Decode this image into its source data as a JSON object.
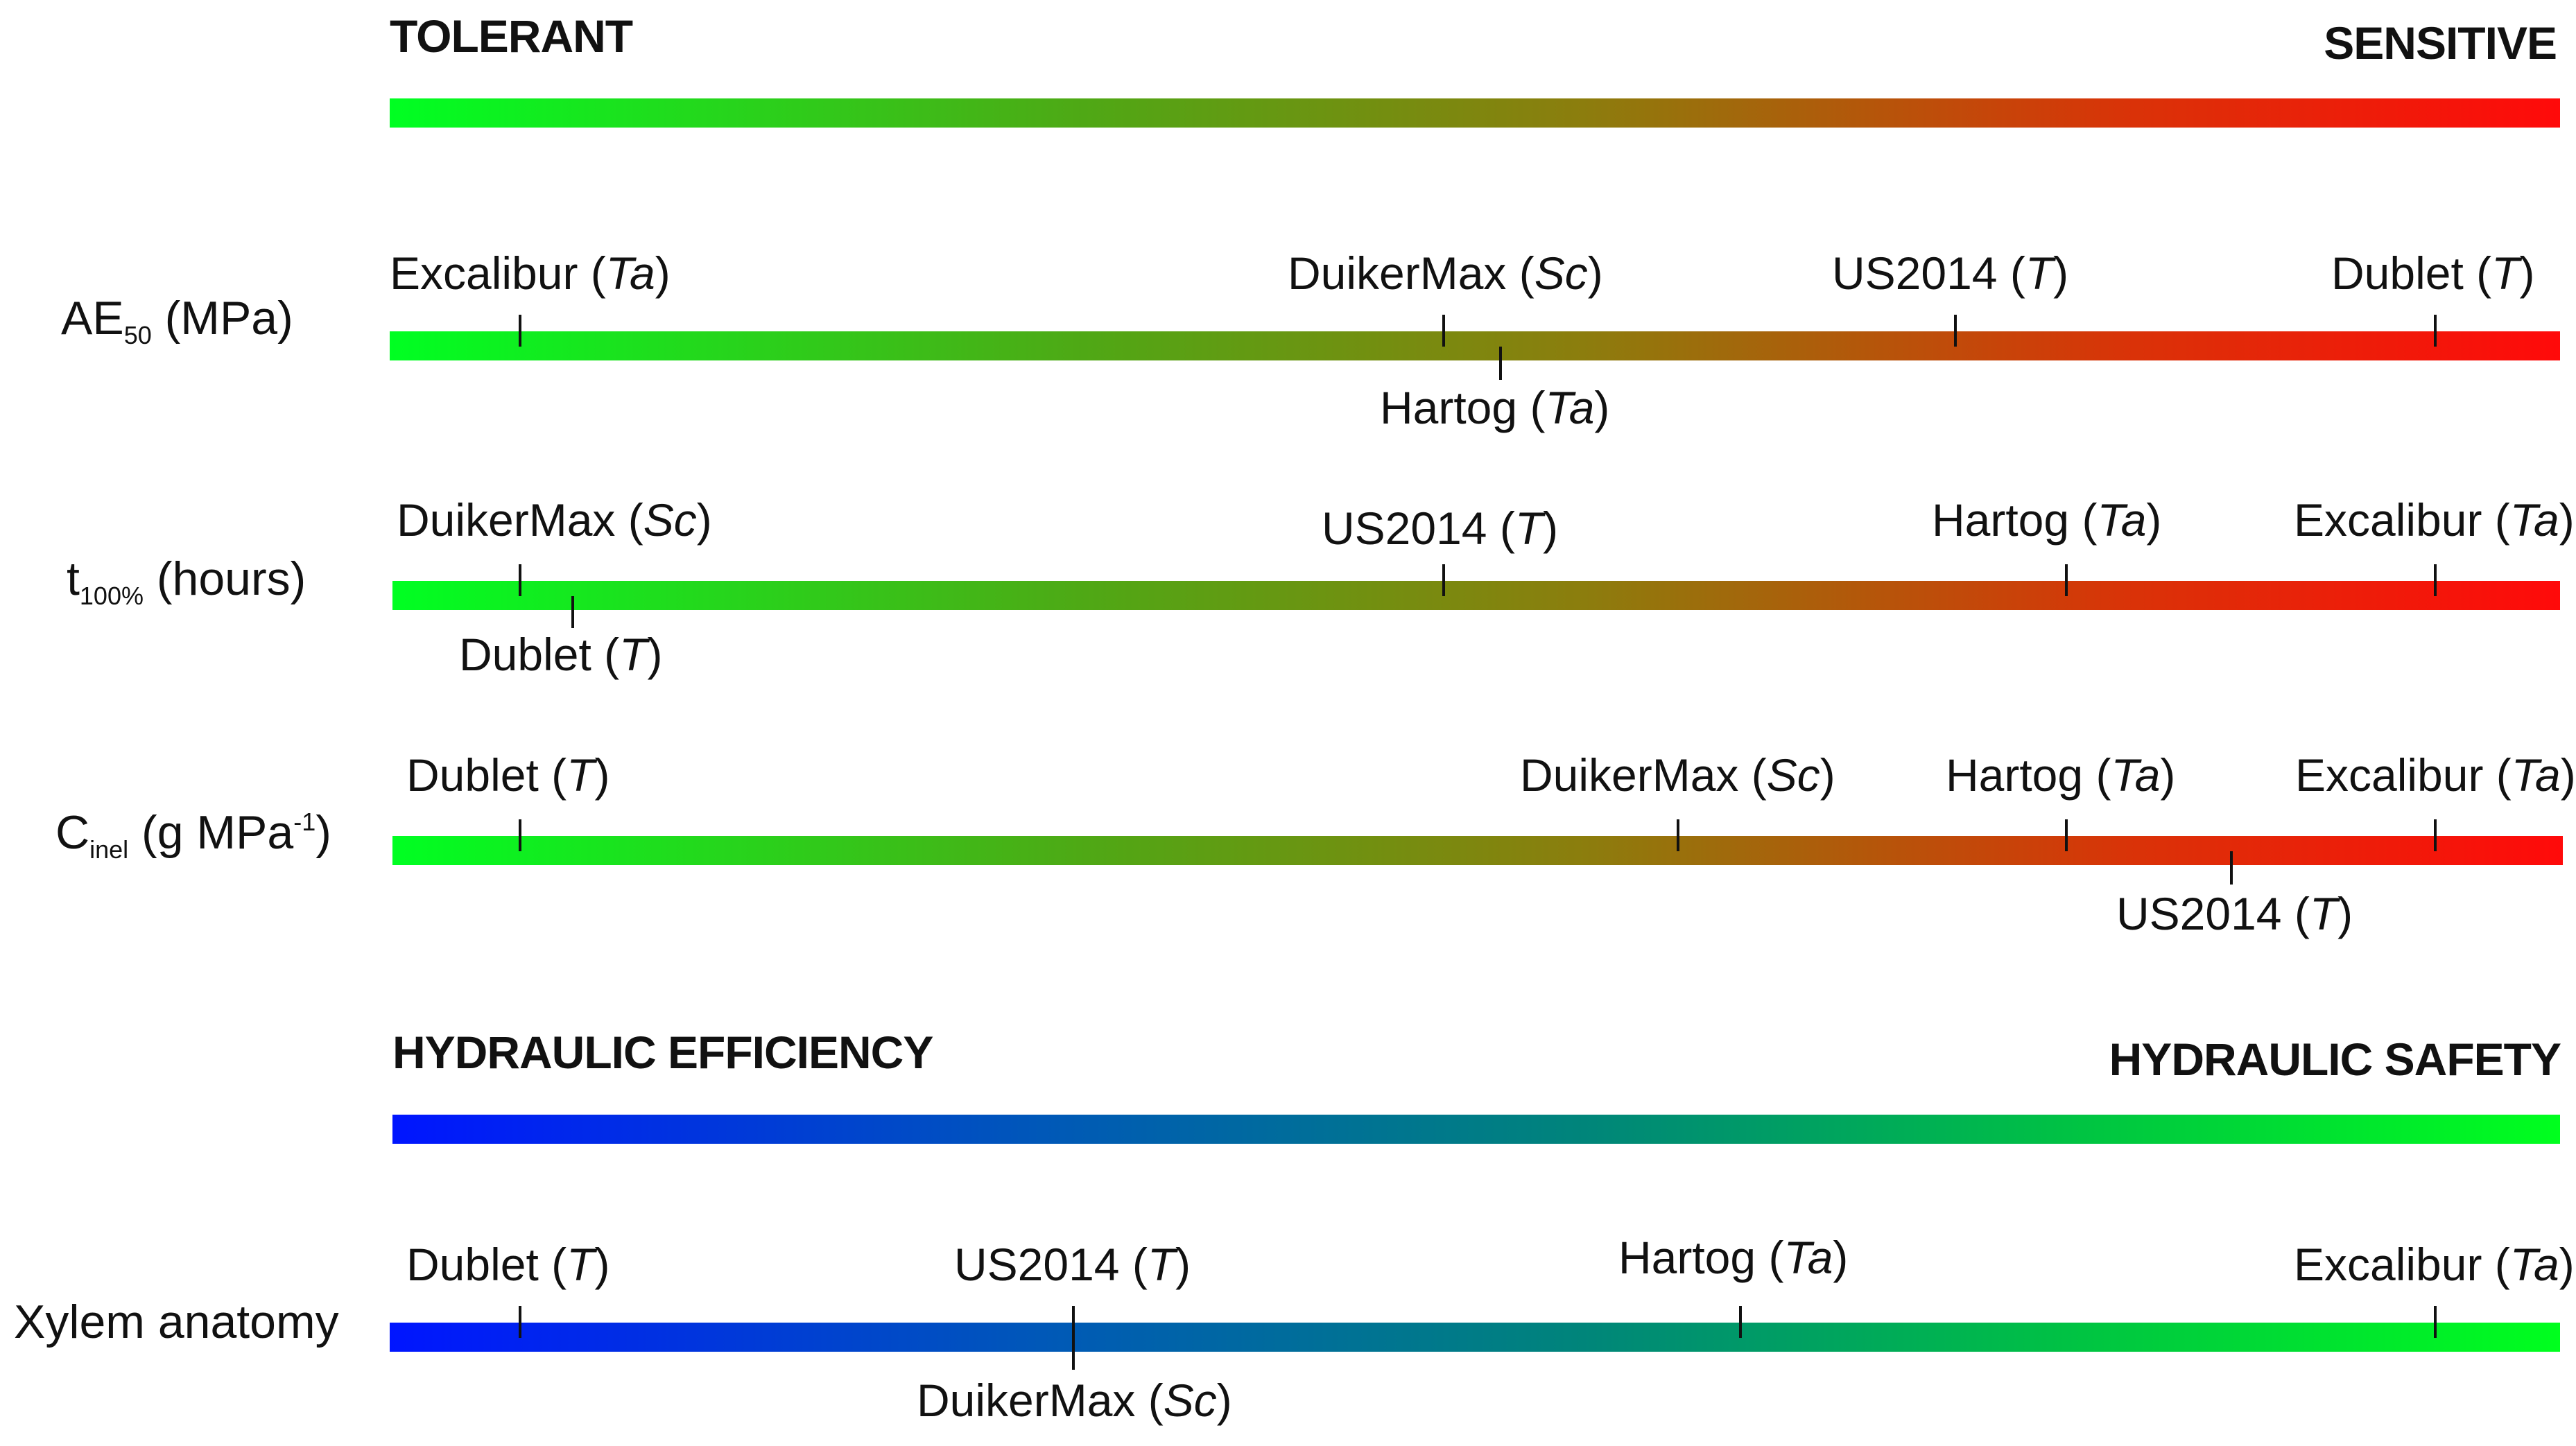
{
  "scales": {
    "sensitivity": {
      "left": "TOLERANT",
      "right": "SENSITIVE",
      "colors": [
        "#00ff22",
        "#ff0a0a"
      ]
    },
    "hydraulic": {
      "left": "HYDRAULIC EFFICIENCY",
      "right": "HYDRAULIC SAFETY",
      "colors": [
        "#0015ff",
        "#00ff1e"
      ]
    }
  },
  "rows": [
    {
      "label_main": "AE",
      "label_sub": "50",
      "label_sup": "",
      "label_unit": " (MPa)",
      "cultivars": [
        {
          "name": "Excalibur",
          "species": "Ta"
        },
        {
          "name": "DuikerMax",
          "species": "Sc"
        },
        {
          "name": "Hartog",
          "species": "Ta"
        },
        {
          "name": "US2014",
          "species": "T"
        },
        {
          "name": "Dublet",
          "species": "T"
        }
      ]
    },
    {
      "label_main": "t",
      "label_sub": "100%",
      "label_sup": "",
      "label_unit": " (hours)",
      "cultivars": [
        {
          "name": "DuikerMax",
          "species": "Sc"
        },
        {
          "name": "Dublet",
          "species": "T"
        },
        {
          "name": "US2014",
          "species": "T"
        },
        {
          "name": "Hartog",
          "species": "Ta"
        },
        {
          "name": "Excalibur",
          "species": "Ta"
        }
      ]
    },
    {
      "label_main": "C",
      "label_sub": "inel",
      "label_sup": "-1",
      "label_unit": " (g MPa",
      "label_close": ")",
      "cultivars": [
        {
          "name": "Dublet",
          "species": "T"
        },
        {
          "name": "DuikerMax",
          "species": "Sc"
        },
        {
          "name": "Hartog",
          "species": "Ta"
        },
        {
          "name": "US2014",
          "species": "T"
        },
        {
          "name": "Excalibur",
          "species": "Ta"
        }
      ]
    },
    {
      "label_main": "Xylem anatomy",
      "label_sub": "",
      "label_sup": "",
      "label_unit": "",
      "cultivars": [
        {
          "name": "Dublet",
          "species": "T"
        },
        {
          "name": "DuikerMax",
          "species": "Sc"
        },
        {
          "name": "US2014",
          "species": "T"
        },
        {
          "name": "Hartog",
          "species": "Ta"
        },
        {
          "name": "Excalibur",
          "species": "Ta"
        }
      ]
    }
  ]
}
